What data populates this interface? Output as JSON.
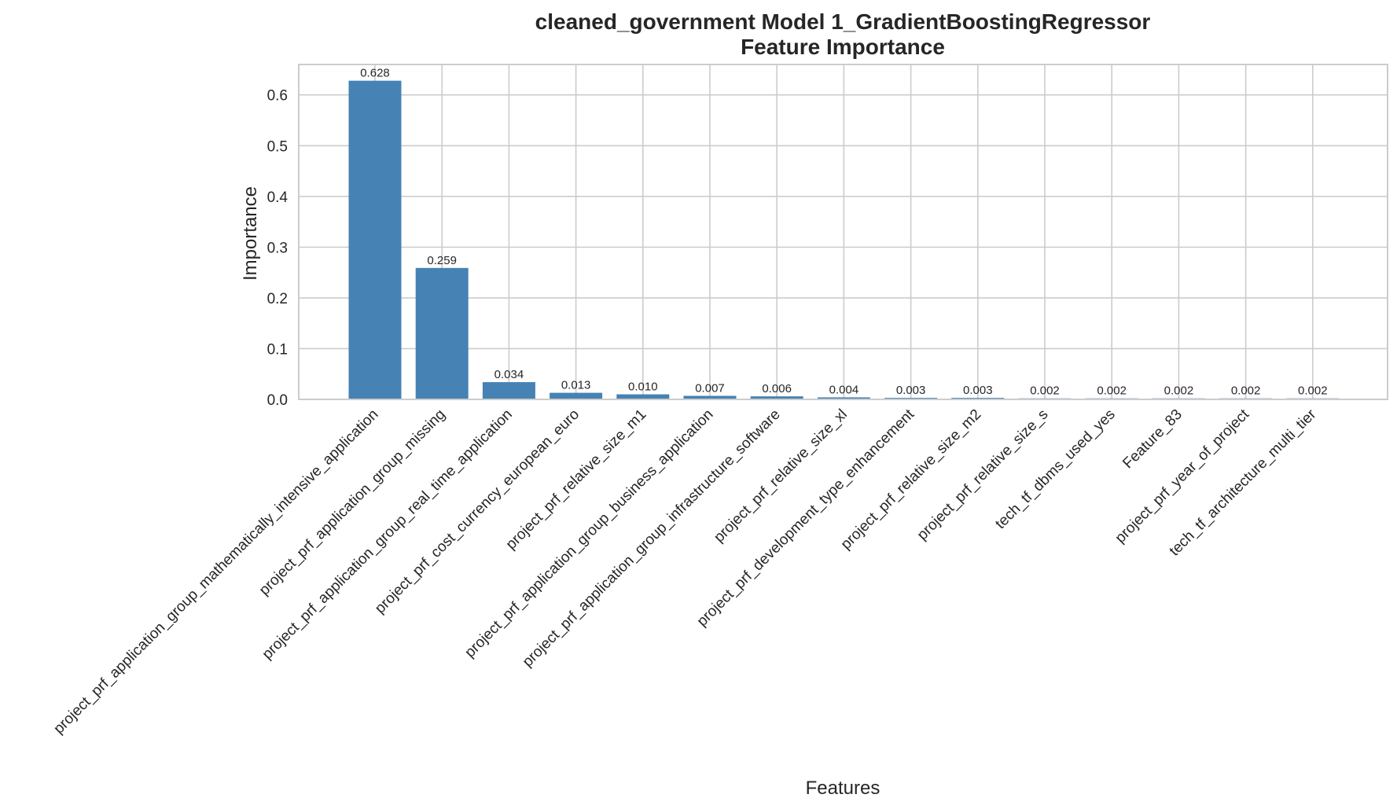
{
  "chart_data": {
    "type": "bar",
    "title": [
      "cleaned_government Model 1_GradientBoostingRegressor",
      "Feature Importance"
    ],
    "xlabel": "Features",
    "ylabel": "Importance",
    "ylim": [
      0,
      0.66
    ],
    "yticks": [
      "0.0",
      "0.1",
      "0.2",
      "0.3",
      "0.4",
      "0.5",
      "0.6"
    ],
    "grid": true,
    "colors": {
      "bar": "#4682b4"
    },
    "categories": [
      "project_prf_application_group_mathematically_intensive_application",
      "project_prf_application_group_missing",
      "project_prf_application_group_real_time_application",
      "project_prf_cost_currency_european_euro",
      "project_prf_relative_size_m1",
      "project_prf_application_group_business_application",
      "project_prf_application_group_infrastructure_software",
      "project_prf_relative_size_xl",
      "project_prf_development_type_enhancement",
      "project_prf_relative_size_m2",
      "project_prf_relative_size_s",
      "tech_tf_dbms_used_yes",
      "Feature_83",
      "project_prf_year_of_project",
      "tech_tf_architecture_multi_tier"
    ],
    "values": [
      0.628,
      0.259,
      0.034,
      0.013,
      0.01,
      0.007,
      0.006,
      0.004,
      0.003,
      0.003,
      0.002,
      0.002,
      0.002,
      0.002,
      0.002
    ],
    "value_labels": [
      "0.628",
      "0.259",
      "0.034",
      "0.013",
      "0.010",
      "0.007",
      "0.006",
      "0.004",
      "0.003",
      "0.003",
      "0.002",
      "0.002",
      "0.002",
      "0.002",
      "0.002"
    ]
  }
}
